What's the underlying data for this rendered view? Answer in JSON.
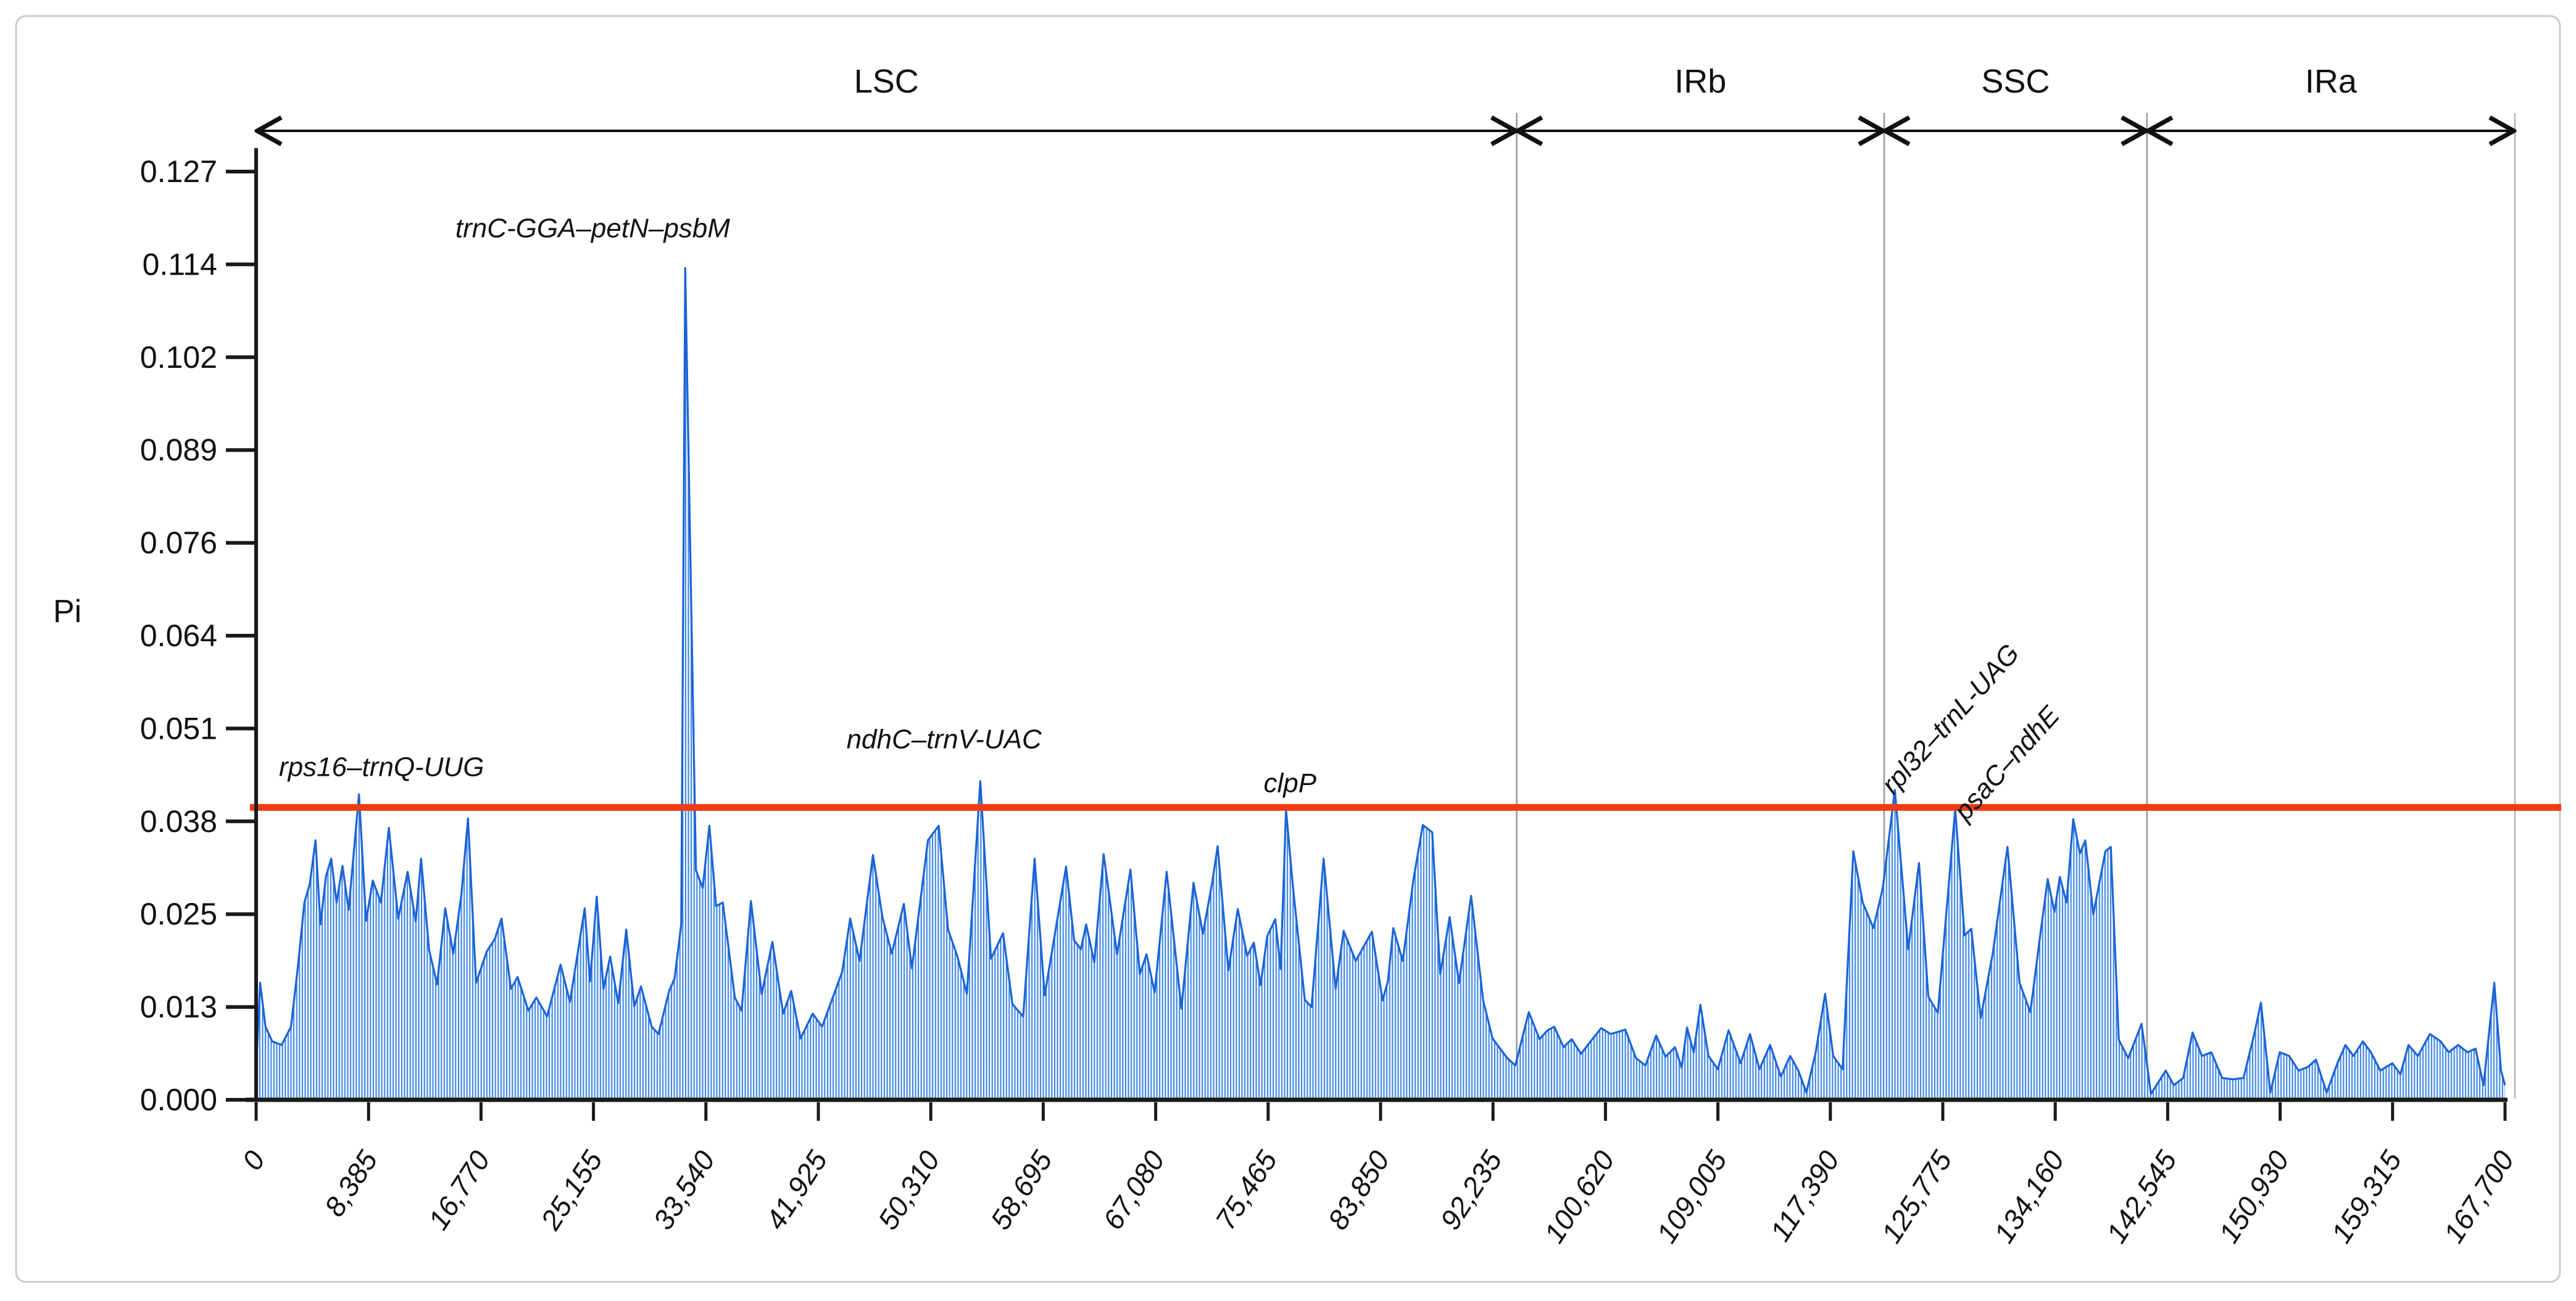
{
  "page": {
    "background": "#ffffff",
    "card_border_color": "#c9cbcd"
  },
  "chart_data": {
    "type": "area",
    "title": "",
    "xlabel": "",
    "ylabel": "Pi",
    "grid": false,
    "legend": "none",
    "x_axis": {
      "min": 0,
      "max": 167700,
      "tick_step": 8385,
      "tick_labels": [
        "0",
        "8,385",
        "16,770",
        "25,155",
        "33,540",
        "41,925",
        "50,310",
        "58,695",
        "67,080",
        "75,465",
        "83,850",
        "92,235",
        "100,620",
        "109,005",
        "117,390",
        "125,775",
        "134,160",
        "142,545",
        "150,930",
        "159,315",
        "167,700"
      ]
    },
    "y_axis": {
      "min": 0,
      "max": 0.127,
      "tick_values": [
        0.0,
        0.0127,
        0.0254,
        0.0381,
        0.0508,
        0.0635,
        0.0762,
        0.0889,
        0.1016,
        0.1143,
        0.127
      ],
      "tick_labels": [
        "0.000",
        "0.013",
        "0.025",
        "0.038",
        "0.051",
        "0.064",
        "0.076",
        "0.089",
        "0.102",
        "0.114",
        "0.127"
      ]
    },
    "threshold": {
      "value": 0.04,
      "color": "#ee3b10"
    },
    "regions": [
      {
        "name": "LSC",
        "start": 0,
        "end": 94000
      },
      {
        "name": "IRb",
        "start": 94000,
        "end": 121400
      },
      {
        "name": "SSC",
        "start": 121400,
        "end": 141000
      },
      {
        "name": "IRa",
        "start": 141000,
        "end": 167700
      }
    ],
    "annotations": [
      {
        "label": "rps16–trnQ-UUG",
        "bp": 1700,
        "pi": 0.0443,
        "rotate": 0,
        "anchor": "start"
      },
      {
        "label": "trnC-GGA–petN–psbM",
        "bp": 25100,
        "pi": 0.118,
        "rotate": 0,
        "anchor": "middle"
      },
      {
        "label": "ndhC–trnV-UAC",
        "bp": 51300,
        "pi": 0.0481,
        "rotate": 0,
        "anchor": "middle"
      },
      {
        "label": "clpP",
        "bp": 77100,
        "pi": 0.0421,
        "rotate": 0,
        "anchor": "middle"
      },
      {
        "label": "rpl32–trnL-UAG",
        "bp": 122100,
        "pi": 0.0416,
        "rotate": -48,
        "anchor": "start"
      },
      {
        "label": "psaC–ndhE",
        "bp": 127500,
        "pi": 0.038,
        "rotate": -48,
        "anchor": "start"
      }
    ],
    "colors": {
      "outline": "#1b63d6",
      "stripe_top": "#2f7de2",
      "stripe_bottom": "#a795e6",
      "area_backing": "#eef4fd",
      "axis": "#1a1a1a",
      "boundary_line": "#9b9b9b"
    },
    "points": [
      [
        0,
        0.004
      ],
      [
        300,
        0.016
      ],
      [
        700,
        0.01
      ],
      [
        1200,
        0.008
      ],
      [
        1900,
        0.0075
      ],
      [
        2600,
        0.01
      ],
      [
        3100,
        0.018
      ],
      [
        3600,
        0.027
      ],
      [
        4000,
        0.0295
      ],
      [
        4430,
        0.0355
      ],
      [
        4800,
        0.024
      ],
      [
        5200,
        0.0305
      ],
      [
        5600,
        0.033
      ],
      [
        6000,
        0.027
      ],
      [
        6440,
        0.032
      ],
      [
        6900,
        0.026
      ],
      [
        7670,
        0.0418
      ],
      [
        8200,
        0.0245
      ],
      [
        8700,
        0.03
      ],
      [
        9300,
        0.027
      ],
      [
        9900,
        0.0372
      ],
      [
        10600,
        0.0248
      ],
      [
        11300,
        0.0312
      ],
      [
        11900,
        0.0244
      ],
      [
        12300,
        0.033
      ],
      [
        12900,
        0.0205
      ],
      [
        13500,
        0.0158
      ],
      [
        14100,
        0.0262
      ],
      [
        14700,
        0.02
      ],
      [
        15300,
        0.028
      ],
      [
        15800,
        0.0385
      ],
      [
        16400,
        0.016
      ],
      [
        17200,
        0.0203
      ],
      [
        17800,
        0.022
      ],
      [
        18300,
        0.0248
      ],
      [
        19000,
        0.0152
      ],
      [
        19500,
        0.0168
      ],
      [
        20300,
        0.0122
      ],
      [
        20900,
        0.014
      ],
      [
        21700,
        0.0114
      ],
      [
        22700,
        0.0185
      ],
      [
        23400,
        0.0134
      ],
      [
        24000,
        0.0203
      ],
      [
        24500,
        0.0262
      ],
      [
        24900,
        0.0162
      ],
      [
        25400,
        0.0278
      ],
      [
        25900,
        0.0152
      ],
      [
        26400,
        0.0196
      ],
      [
        27000,
        0.0132
      ],
      [
        27600,
        0.0233
      ],
      [
        28200,
        0.0128
      ],
      [
        28700,
        0.0155
      ],
      [
        29500,
        0.01
      ],
      [
        30000,
        0.009
      ],
      [
        30800,
        0.0149
      ],
      [
        31200,
        0.0166
      ],
      [
        31700,
        0.024
      ],
      [
        32000,
        0.1138
      ],
      [
        32800,
        0.0314
      ],
      [
        33300,
        0.029
      ],
      [
        33800,
        0.0375
      ],
      [
        34300,
        0.0265
      ],
      [
        34800,
        0.027
      ],
      [
        35700,
        0.014
      ],
      [
        36200,
        0.0122
      ],
      [
        36900,
        0.0272
      ],
      [
        37700,
        0.0145
      ],
      [
        38500,
        0.0216
      ],
      [
        39300,
        0.0118
      ],
      [
        39900,
        0.0149
      ],
      [
        40600,
        0.0084
      ],
      [
        41500,
        0.0118
      ],
      [
        42200,
        0.01
      ],
      [
        43000,
        0.014
      ],
      [
        43700,
        0.0175
      ],
      [
        44300,
        0.0248
      ],
      [
        45000,
        0.019
      ],
      [
        46000,
        0.0335
      ],
      [
        46700,
        0.025
      ],
      [
        47400,
        0.02
      ],
      [
        48300,
        0.0268
      ],
      [
        48900,
        0.018
      ],
      [
        50100,
        0.0355
      ],
      [
        50900,
        0.0375
      ],
      [
        51600,
        0.0233
      ],
      [
        52300,
        0.0196
      ],
      [
        53000,
        0.0145
      ],
      [
        54000,
        0.0436
      ],
      [
        54800,
        0.0193
      ],
      [
        55700,
        0.0228
      ],
      [
        56400,
        0.0131
      ],
      [
        57200,
        0.0114
      ],
      [
        58050,
        0.033
      ],
      [
        58800,
        0.0143
      ],
      [
        60400,
        0.0319
      ],
      [
        61000,
        0.0218
      ],
      [
        61500,
        0.0206
      ],
      [
        61900,
        0.024
      ],
      [
        62500,
        0.0188
      ],
      [
        63200,
        0.0336
      ],
      [
        64200,
        0.0199
      ],
      [
        65200,
        0.0315
      ],
      [
        65900,
        0.0172
      ],
      [
        66400,
        0.0199
      ],
      [
        67000,
        0.0147
      ],
      [
        67900,
        0.0312
      ],
      [
        69000,
        0.0125
      ],
      [
        69900,
        0.0297
      ],
      [
        70600,
        0.0227
      ],
      [
        71300,
        0.0298
      ],
      [
        71700,
        0.0347
      ],
      [
        72500,
        0.0177
      ],
      [
        73200,
        0.0261
      ],
      [
        73900,
        0.0197
      ],
      [
        74400,
        0.0215
      ],
      [
        74900,
        0.0157
      ],
      [
        75400,
        0.0224
      ],
      [
        76000,
        0.0247
      ],
      [
        76400,
        0.0179
      ],
      [
        76800,
        0.0397
      ],
      [
        77300,
        0.0294
      ],
      [
        78200,
        0.0137
      ],
      [
        78700,
        0.0127
      ],
      [
        79600,
        0.033
      ],
      [
        80500,
        0.0152
      ],
      [
        81100,
        0.0231
      ],
      [
        82000,
        0.019
      ],
      [
        83200,
        0.023
      ],
      [
        84000,
        0.0136
      ],
      [
        84400,
        0.0163
      ],
      [
        84800,
        0.0235
      ],
      [
        85500,
        0.019
      ],
      [
        86300,
        0.0301
      ],
      [
        87000,
        0.0376
      ],
      [
        87700,
        0.0366
      ],
      [
        88300,
        0.0172
      ],
      [
        89000,
        0.025
      ],
      [
        89700,
        0.016
      ],
      [
        90600,
        0.0279
      ],
      [
        91500,
        0.0136
      ],
      [
        92200,
        0.0084
      ],
      [
        93300,
        0.0057
      ],
      [
        93900,
        0.0047
      ],
      [
        94900,
        0.012
      ],
      [
        95700,
        0.0083
      ],
      [
        96300,
        0.0095
      ],
      [
        96800,
        0.01
      ],
      [
        97500,
        0.0072
      ],
      [
        98100,
        0.0083
      ],
      [
        98800,
        0.0063
      ],
      [
        99600,
        0.0082
      ],
      [
        100300,
        0.0098
      ],
      [
        101000,
        0.009
      ],
      [
        102100,
        0.0096
      ],
      [
        102900,
        0.0057
      ],
      [
        103600,
        0.0047
      ],
      [
        104400,
        0.0088
      ],
      [
        105100,
        0.0059
      ],
      [
        105800,
        0.0072
      ],
      [
        106300,
        0.0044
      ],
      [
        106700,
        0.0099
      ],
      [
        107200,
        0.0065
      ],
      [
        107700,
        0.013
      ],
      [
        108300,
        0.006
      ],
      [
        109000,
        0.0042
      ],
      [
        109800,
        0.0095
      ],
      [
        110700,
        0.005
      ],
      [
        111400,
        0.009
      ],
      [
        112100,
        0.0042
      ],
      [
        112900,
        0.0075
      ],
      [
        113700,
        0.0032
      ],
      [
        114400,
        0.006
      ],
      [
        115000,
        0.004
      ],
      [
        115600,
        0.001
      ],
      [
        116300,
        0.0065
      ],
      [
        117000,
        0.0145
      ],
      [
        117600,
        0.006
      ],
      [
        118300,
        0.0042
      ],
      [
        119100,
        0.034
      ],
      [
        119800,
        0.027
      ],
      [
        120600,
        0.0235
      ],
      [
        121300,
        0.029
      ],
      [
        122200,
        0.0424
      ],
      [
        123200,
        0.0206
      ],
      [
        124000,
        0.0324
      ],
      [
        124700,
        0.0141
      ],
      [
        125400,
        0.0119
      ],
      [
        126700,
        0.0398
      ],
      [
        127400,
        0.0225
      ],
      [
        127900,
        0.0234
      ],
      [
        128600,
        0.0112
      ],
      [
        129500,
        0.02
      ],
      [
        130600,
        0.0346
      ],
      [
        131500,
        0.016
      ],
      [
        132300,
        0.012
      ],
      [
        133000,
        0.022
      ],
      [
        133600,
        0.0302
      ],
      [
        134100,
        0.0257
      ],
      [
        134500,
        0.0305
      ],
      [
        135000,
        0.027
      ],
      [
        135500,
        0.0384
      ],
      [
        136000,
        0.0337
      ],
      [
        136400,
        0.0355
      ],
      [
        137000,
        0.0254
      ],
      [
        137900,
        0.034
      ],
      [
        138300,
        0.0346
      ],
      [
        138900,
        0.0082
      ],
      [
        139600,
        0.0057
      ],
      [
        140600,
        0.0104
      ],
      [
        141300,
        0.0008
      ],
      [
        142400,
        0.004
      ],
      [
        143000,
        0.002
      ],
      [
        143700,
        0.003
      ],
      [
        144400,
        0.0092
      ],
      [
        145100,
        0.006
      ],
      [
        145800,
        0.0065
      ],
      [
        146600,
        0.003
      ],
      [
        147400,
        0.0028
      ],
      [
        148200,
        0.003
      ],
      [
        149000,
        0.009
      ],
      [
        149500,
        0.0133
      ],
      [
        150200,
        0.001
      ],
      [
        150900,
        0.0065
      ],
      [
        151600,
        0.006
      ],
      [
        152300,
        0.004
      ],
      [
        153000,
        0.0045
      ],
      [
        153600,
        0.0055
      ],
      [
        154400,
        0.001
      ],
      [
        155200,
        0.005
      ],
      [
        155800,
        0.0075
      ],
      [
        156400,
        0.006
      ],
      [
        157100,
        0.008
      ],
      [
        157700,
        0.0065
      ],
      [
        158400,
        0.004
      ],
      [
        159300,
        0.005
      ],
      [
        159900,
        0.0035
      ],
      [
        160500,
        0.0075
      ],
      [
        161200,
        0.006
      ],
      [
        162100,
        0.009
      ],
      [
        162900,
        0.008
      ],
      [
        163500,
        0.0065
      ],
      [
        164200,
        0.0075
      ],
      [
        164900,
        0.0065
      ],
      [
        165500,
        0.007
      ],
      [
        166100,
        0.002
      ],
      [
        166900,
        0.016
      ],
      [
        167400,
        0.004
      ],
      [
        167700,
        0.002
      ]
    ]
  }
}
